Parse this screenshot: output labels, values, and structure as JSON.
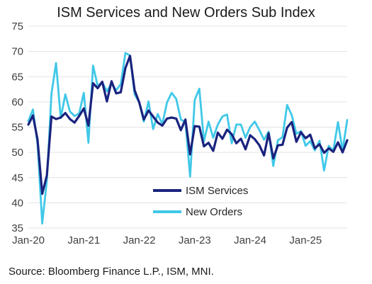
{
  "chart_data": {
    "type": "line",
    "title": "ISM Services and New Orders Sub Index",
    "source": "Source: Bloomberg Finance L.P., ISM, MNI.",
    "ylim": [
      35,
      75
    ],
    "y_ticks": [
      "35",
      "40",
      "45",
      "50",
      "55",
      "60",
      "65",
      "70",
      "75"
    ],
    "x_ticks": [
      "Jan-20",
      "Jan-21",
      "Jan-22",
      "Jan-23",
      "Jan-24",
      "Jan-25"
    ],
    "grid": "horizontal",
    "legend": "center-right",
    "series": [
      {
        "name": "ISM Services",
        "color": "#1a237e",
        "values": [
          55.5,
          57.3,
          52.5,
          41.8,
          45.4,
          57.1,
          56.6,
          56.9,
          57.8,
          56.6,
          55.9,
          57.2,
          58.7,
          55.3,
          63.7,
          62.7,
          64.0,
          60.1,
          64.1,
          61.7,
          61.9,
          66.7,
          69.1,
          62.3,
          59.9,
          56.5,
          58.3,
          57.1,
          55.9,
          55.3,
          56.7,
          56.9,
          56.7,
          54.4,
          56.5,
          49.6,
          55.2,
          55.1,
          51.2,
          51.9,
          50.3,
          53.9,
          52.7,
          54.5,
          53.6,
          51.8,
          52.7,
          50.6,
          53.4,
          52.6,
          51.4,
          49.4,
          53.8,
          48.8,
          51.4,
          51.5,
          54.9,
          56.0,
          52.1,
          54.0,
          52.8,
          53.5,
          50.8,
          51.6,
          49.9,
          50.8,
          50.1,
          52.0,
          50.0,
          52.4
        ]
      },
      {
        "name": "New Orders",
        "color": "#40c8e8",
        "values": [
          56.2,
          58.5,
          51.6,
          35.9,
          44.4,
          61.6,
          67.7,
          56.8,
          61.5,
          58.1,
          57.2,
          57.7,
          61.8,
          51.9,
          67.2,
          63.2,
          63.9,
          62.1,
          63.7,
          62.3,
          63.5,
          69.7,
          69.2,
          61.5,
          59.9,
          56.1,
          60.1,
          54.6,
          57.6,
          55.6,
          59.9,
          61.8,
          60.6,
          56.5,
          56.0,
          45.2,
          60.4,
          62.6,
          52.2,
          56.1,
          52.9,
          55.5,
          57.1,
          57.5,
          51.8,
          55.5,
          55.5,
          52.9,
          55.0,
          56.1,
          54.4,
          52.5,
          54.1,
          47.3,
          52.4,
          53.0,
          59.4,
          57.4,
          53.7,
          54.2,
          51.3,
          52.2,
          50.4,
          52.3,
          46.4,
          51.3,
          50.3,
          56.0,
          50.4,
          56.4
        ]
      }
    ]
  }
}
